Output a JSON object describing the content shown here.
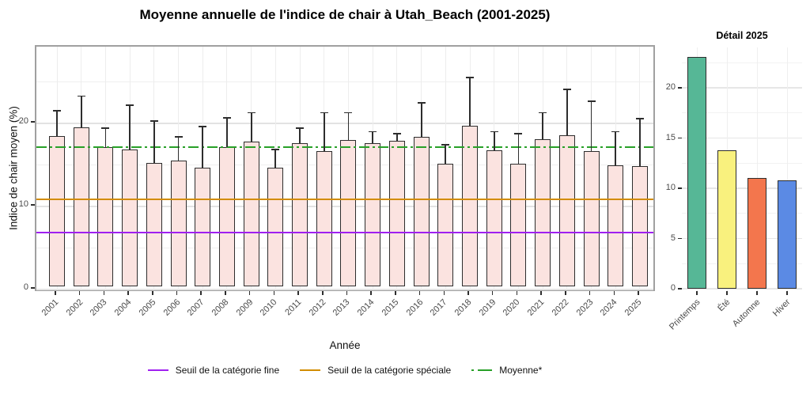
{
  "figure_title": "Moyenne annuelle de l'indice de chair à Utah_Beach (2001-2025)",
  "chart_data": [
    {
      "id": "annual-means",
      "type": "bar",
      "title": "Moyenne annuelle de l'indice de chair à Utah_Beach (2001-2025)",
      "xlabel": "Année",
      "ylabel": "Indice de chair moyen (%)",
      "categories": [
        "2001",
        "2002",
        "2003",
        "2004",
        "2005",
        "2006",
        "2007",
        "2008",
        "2009",
        "2010",
        "2011",
        "2012",
        "2013",
        "2014",
        "2015",
        "2016",
        "2017",
        "2018",
        "2019",
        "2020",
        "2021",
        "2022",
        "2023",
        "2024",
        "2025"
      ],
      "values": [
        18.1,
        19.1,
        16.8,
        16.5,
        14.9,
        15.1,
        14.3,
        16.8,
        17.4,
        14.3,
        17.2,
        16.3,
        17.6,
        17.2,
        17.5,
        18.0,
        14.8,
        19.3,
        16.4,
        14.8,
        17.7,
        18.2,
        16.3,
        14.6,
        14.5
      ],
      "error_upper": [
        21.2,
        23.0,
        19.1,
        21.9,
        20.0,
        18.1,
        19.3,
        20.4,
        21.0,
        16.6,
        19.1,
        21.0,
        21.0,
        18.7,
        18.5,
        22.2,
        17.1,
        25.2,
        18.7,
        18.5,
        21.0,
        23.8,
        22.4,
        18.7,
        20.3
      ],
      "bar_color": "#fbe3e0",
      "bar_border": "#2d2d2d",
      "ylim": [
        0,
        29.2
      ],
      "yticks": [
        0,
        10,
        20
      ],
      "grid": true,
      "legend_position": "bottom",
      "ref_lines": [
        {
          "label": "Seuil de la catégorie fine",
          "value": 6.5,
          "color": "#a020f0",
          "dash": "solid"
        },
        {
          "label": "Seuil de la catégorie spéciale",
          "value": 10.5,
          "color": "#d28c00",
          "dash": "solid"
        },
        {
          "label": "Moyenne*",
          "value": 16.75,
          "color": "#28a028",
          "dash": "dash-dot"
        }
      ]
    },
    {
      "id": "detail-2025",
      "type": "bar",
      "title": "Détail 2025",
      "categories": [
        "Printemps",
        "Été",
        "Automne",
        "Hiver"
      ],
      "values": [
        23.1,
        13.8,
        11.0,
        10.8
      ],
      "bar_colors": [
        "#56b796",
        "#f9f17e",
        "#f3764d",
        "#5b8ae4"
      ],
      "bar_border": "#2d2d2d",
      "ylim": [
        0,
        24.0
      ],
      "yticks": [
        0,
        5,
        10,
        15,
        20
      ],
      "grid": true
    }
  ]
}
